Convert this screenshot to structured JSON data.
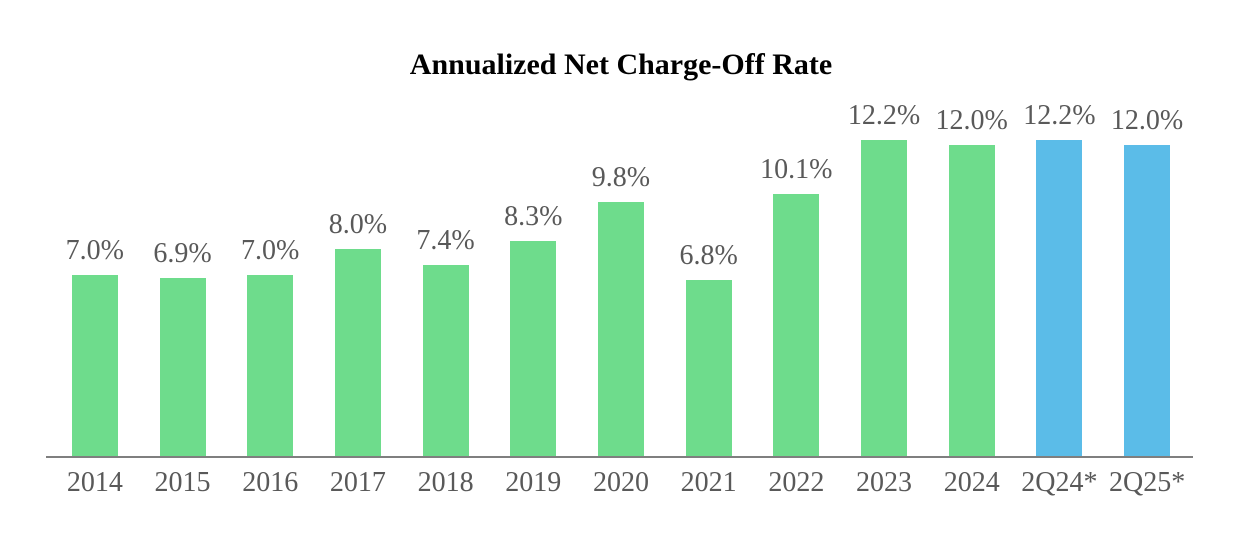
{
  "chart_data": {
    "type": "bar",
    "title": "Annualized Net Charge-Off Rate",
    "categories": [
      "2014",
      "2015",
      "2016",
      "2017",
      "2018",
      "2019",
      "2020",
      "2021",
      "2022",
      "2023",
      "2024",
      "2Q24*",
      "2Q25*"
    ],
    "values": [
      7.0,
      6.9,
      7.0,
      8.0,
      7.4,
      8.3,
      9.8,
      6.8,
      10.1,
      12.2,
      12.0,
      12.2,
      12.0
    ],
    "value_labels": [
      "7.0%",
      "6.9%",
      "7.0%",
      "8.0%",
      "7.4%",
      "8.3%",
      "9.8%",
      "6.8%",
      "10.1%",
      "12.2%",
      "12.0%",
      "12.2%",
      "12.0%"
    ],
    "point_colors": [
      "#6EDC8C",
      "#6EDC8C",
      "#6EDC8C",
      "#6EDC8C",
      "#6EDC8C",
      "#6EDC8C",
      "#6EDC8C",
      "#6EDC8C",
      "#6EDC8C",
      "#6EDC8C",
      "#6EDC8C",
      "#5BBCE8",
      "#5BBCE8"
    ],
    "colors": {
      "annual_bar": "#6EDC8C",
      "interim_bar": "#5BBCE8",
      "label_text": "#595959",
      "axis_line": "#7F7F7F",
      "title_text": "#000000"
    },
    "xlabel": "",
    "ylabel": "",
    "ylim": [
      0,
      14
    ],
    "grid": false,
    "legend": "none",
    "data_labels": "above-bars"
  }
}
